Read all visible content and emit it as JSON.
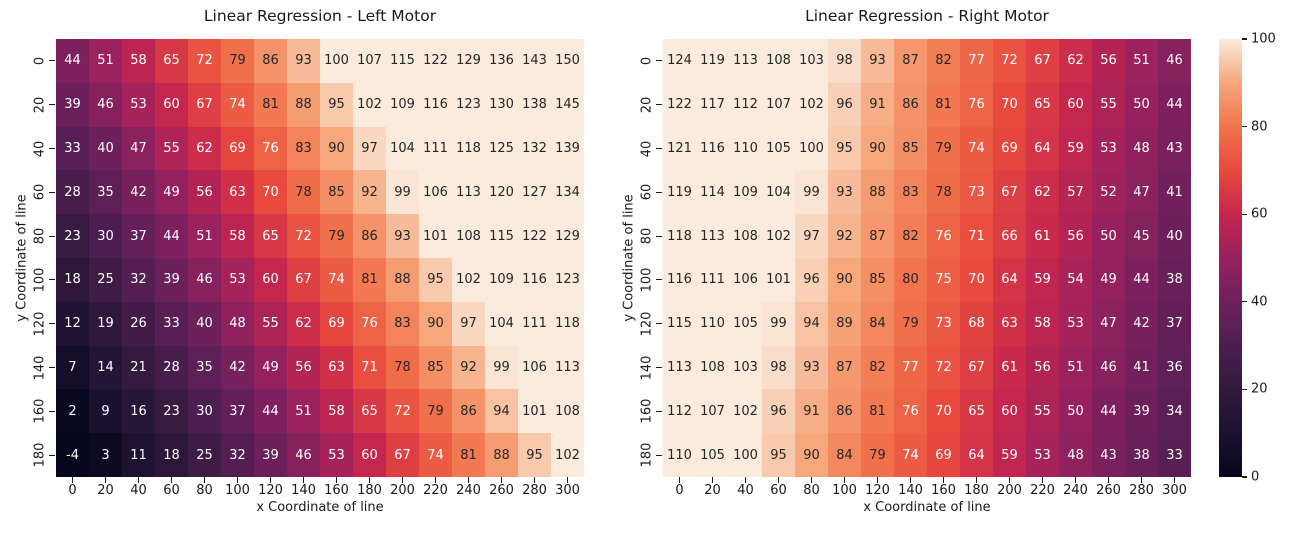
{
  "figure": {
    "background": "#ffffff",
    "text_color": "#1a1a1a"
  },
  "chart_data": [
    {
      "type": "heatmap",
      "title": "Linear Regression - Left Motor",
      "xlabel": "x Coordinate of line",
      "ylabel": "y Coordinate of line",
      "x_ticks": [
        "0",
        "20",
        "40",
        "60",
        "80",
        "100",
        "120",
        "140",
        "160",
        "180",
        "200",
        "220",
        "240",
        "260",
        "280",
        "300"
      ],
      "y_ticks": [
        "0",
        "20",
        "40",
        "60",
        "80",
        "100",
        "120",
        "140",
        "160",
        "180"
      ],
      "vmin": 0,
      "vmax": 100,
      "annotated": true,
      "values": [
        [
          44,
          51,
          58,
          65,
          72,
          79,
          86,
          93,
          100,
          107,
          115,
          122,
          129,
          136,
          143,
          150
        ],
        [
          39,
          46,
          53,
          60,
          67,
          74,
          81,
          88,
          95,
          102,
          109,
          116,
          123,
          130,
          138,
          145
        ],
        [
          33,
          40,
          47,
          55,
          62,
          69,
          76,
          83,
          90,
          97,
          104,
          111,
          118,
          125,
          132,
          139
        ],
        [
          28,
          35,
          42,
          49,
          56,
          63,
          70,
          78,
          85,
          92,
          99,
          106,
          113,
          120,
          127,
          134
        ],
        [
          23,
          30,
          37,
          44,
          51,
          58,
          65,
          72,
          79,
          86,
          93,
          101,
          108,
          115,
          122,
          129
        ],
        [
          18,
          25,
          32,
          39,
          46,
          53,
          60,
          67,
          74,
          81,
          88,
          95,
          102,
          109,
          116,
          123
        ],
        [
          12,
          19,
          26,
          33,
          40,
          48,
          55,
          62,
          69,
          76,
          83,
          90,
          97,
          104,
          111,
          118
        ],
        [
          7,
          14,
          21,
          28,
          35,
          42,
          49,
          56,
          63,
          71,
          78,
          85,
          92,
          99,
          106,
          113
        ],
        [
          2,
          9,
          16,
          23,
          30,
          37,
          44,
          51,
          58,
          65,
          72,
          79,
          86,
          94,
          101,
          108
        ],
        [
          -4,
          3,
          11,
          18,
          25,
          32,
          39,
          46,
          53,
          60,
          67,
          74,
          81,
          88,
          95,
          102
        ]
      ]
    },
    {
      "type": "heatmap",
      "title": "Linear Regression - Right Motor",
      "xlabel": "x Coordinate of line",
      "ylabel": "y Coordinate of line",
      "x_ticks": [
        "0",
        "20",
        "40",
        "60",
        "80",
        "100",
        "120",
        "140",
        "160",
        "180",
        "200",
        "220",
        "240",
        "260",
        "280",
        "300"
      ],
      "y_ticks": [
        "0",
        "20",
        "40",
        "60",
        "80",
        "100",
        "120",
        "140",
        "160",
        "180"
      ],
      "vmin": 0,
      "vmax": 100,
      "annotated": true,
      "values": [
        [
          124,
          119,
          113,
          108,
          103,
          98,
          93,
          87,
          82,
          77,
          72,
          67,
          62,
          56,
          51,
          46
        ],
        [
          122,
          117,
          112,
          107,
          102,
          96,
          91,
          86,
          81,
          76,
          70,
          65,
          60,
          55,
          50,
          44
        ],
        [
          121,
          116,
          110,
          105,
          100,
          95,
          90,
          85,
          79,
          74,
          69,
          64,
          59,
          53,
          48,
          43
        ],
        [
          119,
          114,
          109,
          104,
          99,
          93,
          88,
          83,
          78,
          73,
          67,
          62,
          57,
          52,
          47,
          41
        ],
        [
          118,
          113,
          108,
          102,
          97,
          92,
          87,
          82,
          76,
          71,
          66,
          61,
          56,
          50,
          45,
          40
        ],
        [
          116,
          111,
          106,
          101,
          96,
          90,
          85,
          80,
          75,
          70,
          64,
          59,
          54,
          49,
          44,
          38
        ],
        [
          115,
          110,
          105,
          99,
          94,
          89,
          84,
          79,
          73,
          68,
          63,
          58,
          53,
          47,
          42,
          37
        ],
        [
          113,
          108,
          103,
          98,
          93,
          87,
          82,
          77,
          72,
          67,
          61,
          56,
          51,
          46,
          41,
          36
        ],
        [
          112,
          107,
          102,
          96,
          91,
          86,
          81,
          76,
          70,
          65,
          60,
          55,
          50,
          44,
          39,
          34
        ],
        [
          110,
          105,
          100,
          95,
          90,
          84,
          79,
          74,
          69,
          64,
          59,
          53,
          48,
          43,
          38,
          33
        ]
      ]
    }
  ],
  "colorbar": {
    "colormap": "rocket",
    "range": [
      0,
      100
    ],
    "tick_labels": [
      "100",
      "80",
      "60",
      "40",
      "20",
      "0"
    ],
    "tick_values": [
      100,
      80,
      60,
      40,
      20,
      0
    ],
    "stops": [
      [
        0,
        "#06061C"
      ],
      [
        10,
        "#1C1132"
      ],
      [
        20,
        "#30193C"
      ],
      [
        30,
        "#4D1E50"
      ],
      [
        40,
        "#6E205B"
      ],
      [
        50,
        "#97215F"
      ],
      [
        60,
        "#C5264D"
      ],
      [
        70,
        "#E84A3E"
      ],
      [
        80,
        "#F1744C"
      ],
      [
        90,
        "#F6A77C"
      ],
      [
        100,
        "#FAEBDD"
      ]
    ],
    "annotation_dark_text": "#262626",
    "annotation_light_text": "#ffffff",
    "dark_text_threshold": 78
  }
}
